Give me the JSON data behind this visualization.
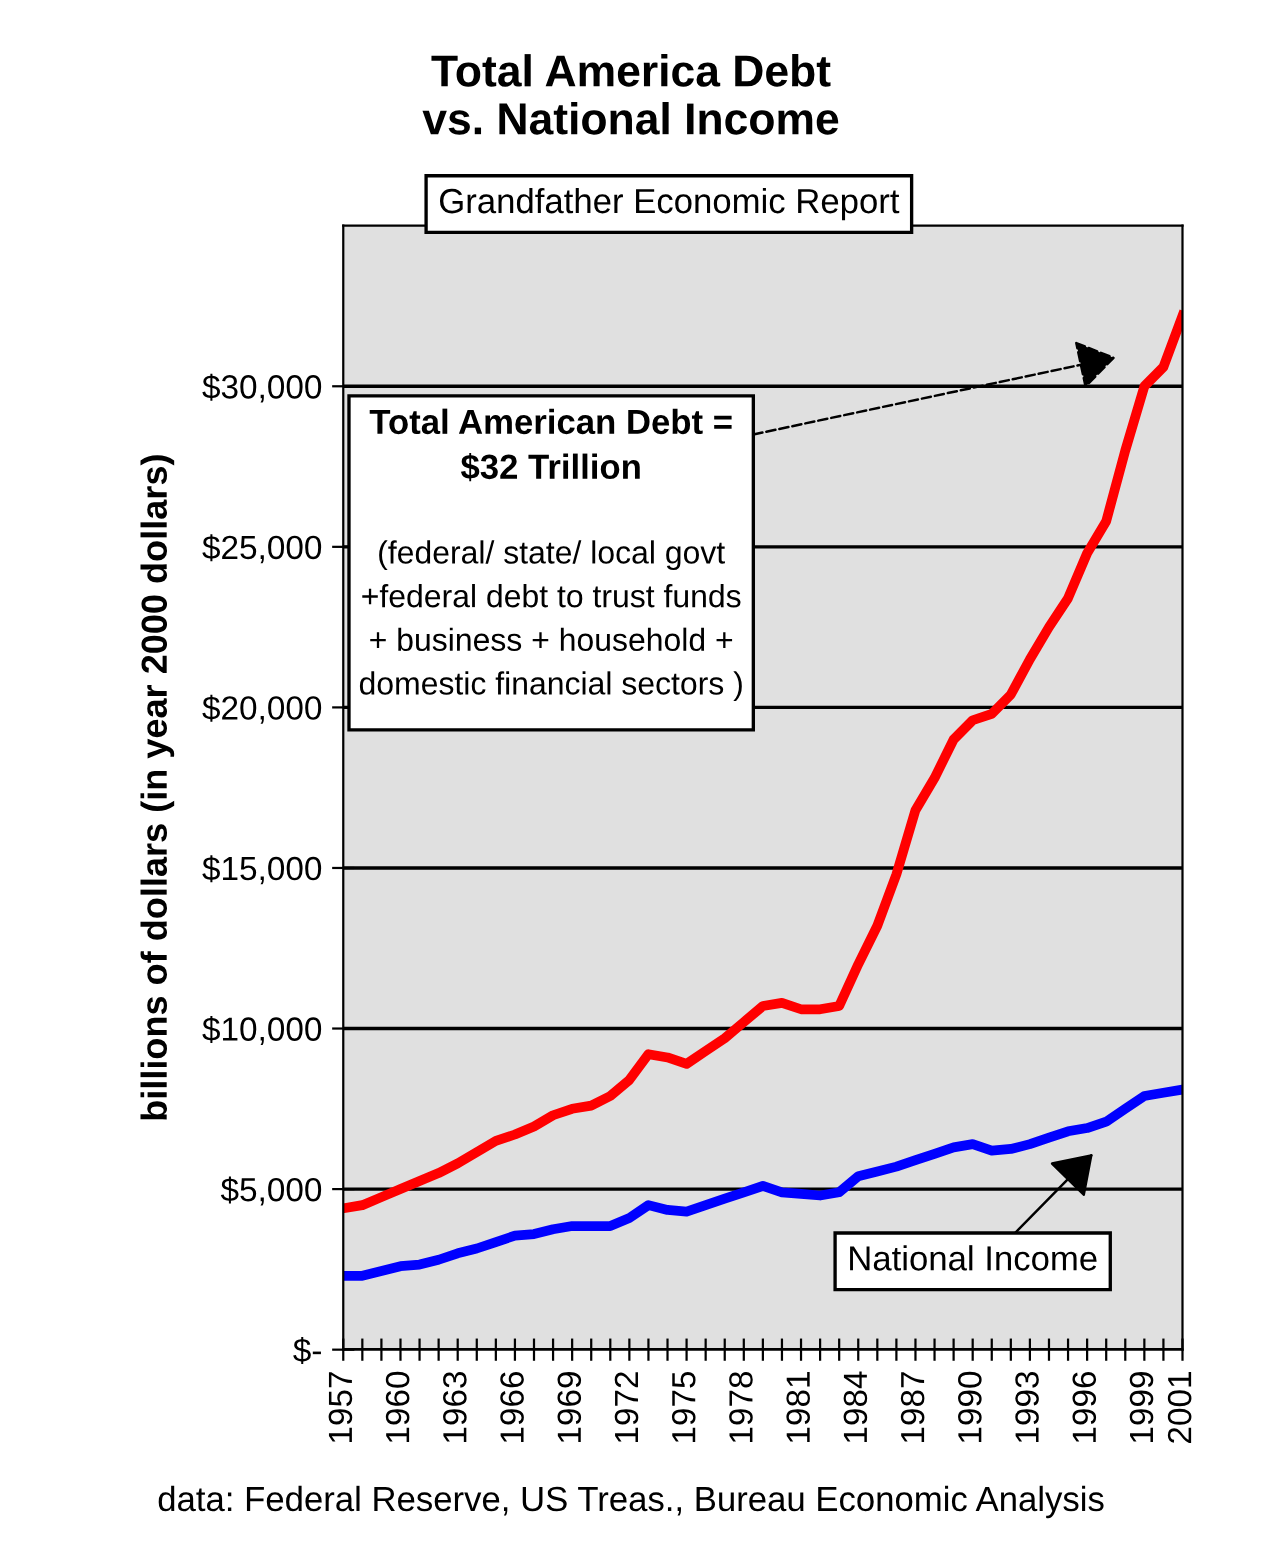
{
  "chart_data": {
    "type": "line",
    "title": "Total America Debt\nvs. National Income",
    "ylabel": "billions of dollars (in year 2000 dollars)",
    "x": [
      1957,
      1958,
      1959,
      1960,
      1961,
      1962,
      1963,
      1964,
      1965,
      1966,
      1967,
      1968,
      1969,
      1970,
      1971,
      1972,
      1973,
      1974,
      1975,
      1976,
      1977,
      1978,
      1979,
      1980,
      1981,
      1982,
      1983,
      1984,
      1985,
      1986,
      1987,
      1988,
      1989,
      1990,
      1991,
      1992,
      1993,
      1994,
      1995,
      1996,
      1997,
      1998,
      1999,
      2000,
      2001
    ],
    "series": [
      {
        "color": "#ff0000",
        "values": [
          4400,
          4500,
          4750,
          5000,
          5250,
          5500,
          5800,
          6150,
          6500,
          6700,
          6950,
          7300,
          7500,
          7600,
          7900,
          8400,
          9200,
          9100,
          8900,
          9300,
          9700,
          10200,
          10700,
          10800,
          10600,
          10600,
          10700,
          12000,
          13200,
          14800,
          16800,
          17800,
          19000,
          19600,
          19800,
          20400,
          21500,
          22500,
          23400,
          24800,
          25800,
          28000,
          30000,
          30600,
          32200
        ]
      },
      {
        "color": "#0000ff",
        "values": [
          2300,
          2300,
          2450,
          2600,
          2650,
          2800,
          3000,
          3150,
          3350,
          3550,
          3600,
          3750,
          3850,
          3850,
          3850,
          4100,
          4500,
          4350,
          4300,
          4500,
          4700,
          4900,
          5100,
          4900,
          4850,
          4800,
          4900,
          5400,
          5550,
          5700,
          5900,
          6100,
          6300,
          6400,
          6200,
          6250,
          6400,
          6600,
          6800,
          6900,
          7100,
          7500,
          7900,
          8000,
          8100
        ]
      }
    ],
    "xlim": [
      1957,
      2001
    ],
    "xticks": [
      1957,
      {
        "value": 1958,
        "label": null
      },
      {
        "value": 1959,
        "label": null
      },
      1960,
      {
        "value": 1961,
        "label": null
      },
      {
        "value": 1962,
        "label": null
      },
      1963,
      {
        "value": 1964,
        "label": null
      },
      {
        "value": 1965,
        "label": null
      },
      1966,
      {
        "value": 1967,
        "label": null
      },
      {
        "value": 1968,
        "label": null
      },
      1969,
      {
        "value": 1970,
        "label": null
      },
      {
        "value": 1971,
        "label": null
      },
      1972,
      {
        "value": 1973,
        "label": null
      },
      {
        "value": 1974,
        "label": null
      },
      1975,
      {
        "value": 1976,
        "label": null
      },
      {
        "value": 1977,
        "label": null
      },
      1978,
      {
        "value": 1979,
        "label": null
      },
      {
        "value": 1980,
        "label": null
      },
      1981,
      {
        "value": 1982,
        "label": null
      },
      {
        "value": 1983,
        "label": null
      },
      1984,
      {
        "value": 1985,
        "label": null
      },
      {
        "value": 1986,
        "label": null
      },
      1987,
      {
        "value": 1988,
        "label": null
      },
      {
        "value": 1989,
        "label": null
      },
      1990,
      {
        "value": 1991,
        "label": null
      },
      {
        "value": 1992,
        "label": null
      },
      1993,
      {
        "value": 1994,
        "label": null
      },
      {
        "value": 1995,
        "label": null
      },
      1996,
      {
        "value": 1997,
        "label": null
      },
      {
        "value": 1998,
        "label": null
      },
      1999,
      {
        "value": 2000,
        "label": null
      },
      2001
    ],
    "ylim": [
      0,
      35000
    ],
    "yticks": [
      {
        "value": 0,
        "label": "$-"
      },
      {
        "value": 5000,
        "label": "$5,000"
      },
      {
        "value": 10000,
        "label": "$10,000"
      },
      {
        "value": 15000,
        "label": "$15,000"
      },
      {
        "value": 20000,
        "label": "$20,000"
      },
      {
        "value": 25000,
        "label": "$25,000"
      },
      {
        "value": 30000,
        "label": "$30,000"
      }
    ],
    "grid": "y",
    "legend": false,
    "annotations": [
      "Grandfather Economic Report",
      "Total American Debt =\n$32 Trillion",
      "(federal/ state/ local govt\n+federal debt to trust funds\n+ business + household +\ndomestic financial sectors )",
      "National Income",
      "data: Federal Reserve, US Treas., Bureau Economic Analysis"
    ]
  }
}
